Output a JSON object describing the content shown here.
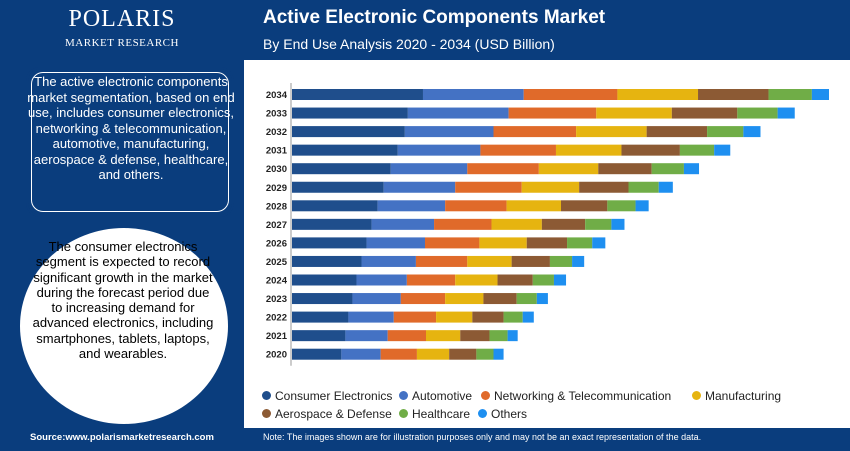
{
  "brand": {
    "name": "POLARIS",
    "tagline": "MARKET RESEARCH"
  },
  "header": {
    "title": "Active Electronic Components Market",
    "subtitle": "By End Use Analysis 2020 - 2034 (USD Billion)"
  },
  "sidebar": {
    "description": "The active electronic components market segmentation, based on end use, includes consumer electronics, networking & telecommunication, automotive, manufacturing, aerospace & defense, healthcare, and others.",
    "highlight": "The consumer electronics segment is expected to record significant growth in the market during the forecast period due to increasing demand for advanced electronics, including smartphones, tablets, laptops, and wearables."
  },
  "footer": {
    "source": "Source:www.polarismarketresearch.com",
    "note": "Note: The images shown are for illustration purposes only and may not be an exact representation of the data."
  },
  "chart_data": {
    "type": "bar",
    "orientation": "horizontal",
    "stacked": true,
    "title": "",
    "xlabel": "",
    "ylabel": "",
    "grid": false,
    "legend_position": "bottom",
    "categories": [
      "2034",
      "2033",
      "2032",
      "2031",
      "2030",
      "2029",
      "2028",
      "2027",
      "2026",
      "2025",
      "2024",
      "2023",
      "2022",
      "2021",
      "2020"
    ],
    "series": [
      {
        "name": "Consumer Electronics",
        "color": "#1f4e8c",
        "values": [
          130,
          115,
          112,
          105,
          98,
          91,
          85,
          79,
          74,
          69,
          64,
          60,
          56,
          53,
          49
        ]
      },
      {
        "name": "Automotive",
        "color": "#4472c4",
        "values": [
          100,
          100,
          88,
          82,
          76,
          71,
          67,
          62,
          58,
          54,
          50,
          48,
          45,
          42,
          39
        ]
      },
      {
        "name": "Networking & Telecommunication",
        "color": "#e06a2a",
        "values": [
          93,
          87,
          82,
          75,
          71,
          66,
          61,
          57,
          54,
          51,
          48,
          44,
          42,
          38,
          36
        ]
      },
      {
        "name": "Manufacturing",
        "color": "#e6b410",
        "values": [
          80,
          75,
          70,
          65,
          59,
          57,
          54,
          50,
          47,
          44,
          42,
          38,
          36,
          34,
          32
        ]
      },
      {
        "name": "Aerospace & Defense",
        "color": "#8c5a34",
        "values": [
          70,
          65,
          60,
          58,
          53,
          49,
          46,
          43,
          40,
          38,
          35,
          33,
          31,
          29,
          27
        ]
      },
      {
        "name": "Healthcare",
        "color": "#70ad47",
        "values": [
          43,
          40,
          36,
          34,
          32,
          30,
          28,
          26,
          25,
          22,
          21,
          20,
          19,
          18,
          17
        ]
      },
      {
        "name": "Others",
        "color": "#1e8ff0",
        "values": [
          17,
          17,
          17,
          16,
          15,
          14,
          13,
          13,
          13,
          12,
          12,
          11,
          11,
          10,
          10
        ]
      }
    ]
  }
}
